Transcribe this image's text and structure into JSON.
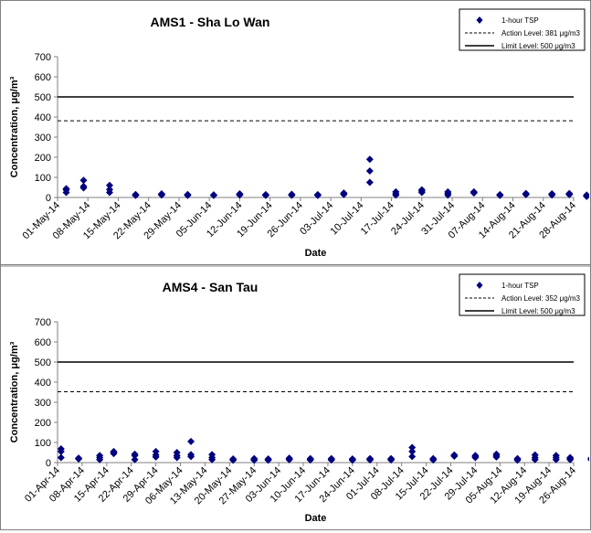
{
  "chart_data": [
    {
      "type": "scatter",
      "title": "AMS1 - Sha Lo Wan",
      "xlabel": "Date",
      "ylabel": "Concentration, μg/m³",
      "ylim": [
        0,
        700
      ],
      "yticks": [
        0,
        100,
        200,
        300,
        400,
        500,
        600,
        700
      ],
      "xlim": [
        "2014-05-01",
        "2014-08-28"
      ],
      "xticks": [
        "01-May-14",
        "08-May-14",
        "15-May-14",
        "22-May-14",
        "29-May-14",
        "05-Jun-14",
        "12-Jun-14",
        "19-Jun-14",
        "26-Jun-14",
        "03-Jul-14",
        "10-Jul-14",
        "17-Jul-14",
        "24-Jul-14",
        "31-Jul-14",
        "07-Aug-14",
        "14-Aug-14",
        "21-Aug-14",
        "28-Aug-14"
      ],
      "grid": false,
      "legend_position": "top-right",
      "legend": [
        {
          "label": "1-hour TSP",
          "style": "marker"
        },
        {
          "label": "Action Level: 381 μg/m3",
          "style": "dashed"
        },
        {
          "label": "Limit Level: 500 μg/m3",
          "style": "solid"
        }
      ],
      "action_level": 381,
      "limit_level": 500,
      "series": [
        {
          "name": "1-hour TSP",
          "color": "#000080",
          "points": [
            [
              "2014-05-03",
              25
            ],
            [
              "2014-05-03",
              38
            ],
            [
              "2014-05-03",
              44
            ],
            [
              "2014-05-07",
              85
            ],
            [
              "2014-05-07",
              55
            ],
            [
              "2014-05-07",
              48
            ],
            [
              "2014-05-13",
              60
            ],
            [
              "2014-05-13",
              40
            ],
            [
              "2014-05-13",
              25
            ],
            [
              "2014-05-19",
              15
            ],
            [
              "2014-05-19",
              12
            ],
            [
              "2014-05-19",
              10
            ],
            [
              "2014-05-25",
              18
            ],
            [
              "2014-05-25",
              15
            ],
            [
              "2014-05-25",
              12
            ],
            [
              "2014-05-31",
              15
            ],
            [
              "2014-05-31",
              12
            ],
            [
              "2014-05-31",
              10
            ],
            [
              "2014-06-06",
              13
            ],
            [
              "2014-06-06",
              11
            ],
            [
              "2014-06-06",
              10
            ],
            [
              "2014-06-12",
              18
            ],
            [
              "2014-06-12",
              15
            ],
            [
              "2014-06-12",
              12
            ],
            [
              "2014-06-18",
              14
            ],
            [
              "2014-06-18",
              12
            ],
            [
              "2014-06-18",
              10
            ],
            [
              "2014-06-24",
              16
            ],
            [
              "2014-06-24",
              13
            ],
            [
              "2014-06-24",
              11
            ],
            [
              "2014-06-30",
              14
            ],
            [
              "2014-06-30",
              12
            ],
            [
              "2014-06-30",
              10
            ],
            [
              "2014-07-06",
              22
            ],
            [
              "2014-07-06",
              18
            ],
            [
              "2014-07-06",
              15
            ],
            [
              "2014-07-12",
              190
            ],
            [
              "2014-07-12",
              132
            ],
            [
              "2014-07-12",
              75
            ],
            [
              "2014-07-18",
              28
            ],
            [
              "2014-07-18",
              18
            ],
            [
              "2014-07-18",
              12
            ],
            [
              "2014-07-24",
              38
            ],
            [
              "2014-07-24",
              32
            ],
            [
              "2014-07-24",
              25
            ],
            [
              "2014-07-30",
              28
            ],
            [
              "2014-07-30",
              20
            ],
            [
              "2014-07-30",
              12
            ],
            [
              "2014-08-05",
              28
            ],
            [
              "2014-08-05",
              25
            ],
            [
              "2014-08-05",
              22
            ],
            [
              "2014-08-11",
              14
            ],
            [
              "2014-08-11",
              12
            ],
            [
              "2014-08-11",
              10
            ],
            [
              "2014-08-17",
              20
            ],
            [
              "2014-08-17",
              17
            ],
            [
              "2014-08-17",
              14
            ],
            [
              "2014-08-23",
              18
            ],
            [
              "2014-08-23",
              15
            ],
            [
              "2014-08-23",
              12
            ],
            [
              "2014-08-27",
              20
            ],
            [
              "2014-08-27",
              17
            ],
            [
              "2014-08-27",
              14
            ],
            [
              "2014-08-31",
              12
            ],
            [
              "2014-08-31",
              8
            ],
            [
              "2014-08-31",
              5
            ]
          ]
        }
      ]
    },
    {
      "type": "scatter",
      "title": "AMS4 - San Tau",
      "xlabel": "Date",
      "ylabel": "Concentration, μg/m³",
      "ylim": [
        0,
        700
      ],
      "yticks": [
        0,
        100,
        200,
        300,
        400,
        500,
        600,
        700
      ],
      "xlim": [
        "2014-04-01",
        "2014-08-26"
      ],
      "xticks": [
        "01-Apr-14",
        "08-Apr-14",
        "15-Apr-14",
        "22-Apr-14",
        "29-Apr-14",
        "06-May-14",
        "13-May-14",
        "20-May-14",
        "27-May-14",
        "03-Jun-14",
        "10-Jun-14",
        "17-Jun-14",
        "24-Jun-14",
        "01-Jul-14",
        "08-Jul-14",
        "15-Jul-14",
        "22-Jul-14",
        "29-Jul-14",
        "05-Aug-14",
        "12-Aug-14",
        "19-Aug-14",
        "26-Aug-14"
      ],
      "grid": false,
      "legend_position": "top-right",
      "legend": [
        {
          "label": "1-hour TSP",
          "style": "marker"
        },
        {
          "label": "Action Level: 352 μg/m3",
          "style": "dashed"
        },
        {
          "label": "Limit Level: 500 μg/m3",
          "style": "solid"
        }
      ],
      "action_level": 352,
      "limit_level": 500,
      "series": [
        {
          "name": "1-hour TSP",
          "color": "#000080",
          "points": [
            [
              "2014-04-02",
              68
            ],
            [
              "2014-04-02",
              55
            ],
            [
              "2014-04-02",
              25
            ],
            [
              "2014-04-07",
              22
            ],
            [
              "2014-04-07",
              20
            ],
            [
              "2014-04-07",
              18
            ],
            [
              "2014-04-13",
              35
            ],
            [
              "2014-04-13",
              25
            ],
            [
              "2014-04-13",
              15
            ],
            [
              "2014-04-17",
              55
            ],
            [
              "2014-04-17",
              50
            ],
            [
              "2014-04-17",
              45
            ],
            [
              "2014-04-23",
              42
            ],
            [
              "2014-04-23",
              35
            ],
            [
              "2014-04-23",
              15
            ],
            [
              "2014-04-29",
              55
            ],
            [
              "2014-04-29",
              38
            ],
            [
              "2014-04-29",
              28
            ],
            [
              "2014-05-05",
              50
            ],
            [
              "2014-05-05",
              35
            ],
            [
              "2014-05-05",
              25
            ],
            [
              "2014-05-09",
              105
            ],
            [
              "2014-05-09",
              40
            ],
            [
              "2014-05-09",
              30
            ],
            [
              "2014-05-15",
              40
            ],
            [
              "2014-05-15",
              25
            ],
            [
              "2014-05-15",
              15
            ],
            [
              "2014-05-21",
              18
            ],
            [
              "2014-05-21",
              15
            ],
            [
              "2014-05-21",
              12
            ],
            [
              "2014-05-27",
              20
            ],
            [
              "2014-05-27",
              15
            ],
            [
              "2014-05-27",
              12
            ],
            [
              "2014-05-31",
              18
            ],
            [
              "2014-05-31",
              15
            ],
            [
              "2014-05-31",
              12
            ],
            [
              "2014-06-06",
              22
            ],
            [
              "2014-06-06",
              18
            ],
            [
              "2014-06-06",
              14
            ],
            [
              "2014-06-12",
              20
            ],
            [
              "2014-06-12",
              16
            ],
            [
              "2014-06-12",
              13
            ],
            [
              "2014-06-18",
              20
            ],
            [
              "2014-06-18",
              16
            ],
            [
              "2014-06-18",
              13
            ],
            [
              "2014-06-24",
              18
            ],
            [
              "2014-06-24",
              15
            ],
            [
              "2014-06-24",
              12
            ],
            [
              "2014-06-29",
              20
            ],
            [
              "2014-06-29",
              16
            ],
            [
              "2014-06-29",
              13
            ],
            [
              "2014-07-05",
              20
            ],
            [
              "2014-07-05",
              16
            ],
            [
              "2014-07-05",
              13
            ],
            [
              "2014-07-11",
              75
            ],
            [
              "2014-07-11",
              55
            ],
            [
              "2014-07-11",
              30
            ],
            [
              "2014-07-17",
              20
            ],
            [
              "2014-07-17",
              16
            ],
            [
              "2014-07-17",
              13
            ],
            [
              "2014-07-23",
              38
            ],
            [
              "2014-07-23",
              35
            ],
            [
              "2014-07-23",
              32
            ],
            [
              "2014-07-29",
              35
            ],
            [
              "2014-07-29",
              30
            ],
            [
              "2014-07-29",
              25
            ],
            [
              "2014-08-04",
              42
            ],
            [
              "2014-08-04",
              35
            ],
            [
              "2014-08-04",
              28
            ],
            [
              "2014-08-10",
              20
            ],
            [
              "2014-08-10",
              16
            ],
            [
              "2014-08-10",
              12
            ],
            [
              "2014-08-15",
              38
            ],
            [
              "2014-08-15",
              25
            ],
            [
              "2014-08-15",
              15
            ],
            [
              "2014-08-21",
              35
            ],
            [
              "2014-08-21",
              25
            ],
            [
              "2014-08-21",
              15
            ],
            [
              "2014-08-25",
              25
            ],
            [
              "2014-08-25",
              20
            ],
            [
              "2014-08-25",
              15
            ],
            [
              "2014-08-31",
              22
            ],
            [
              "2014-08-31",
              18
            ],
            [
              "2014-08-31",
              14
            ]
          ]
        }
      ]
    }
  ]
}
